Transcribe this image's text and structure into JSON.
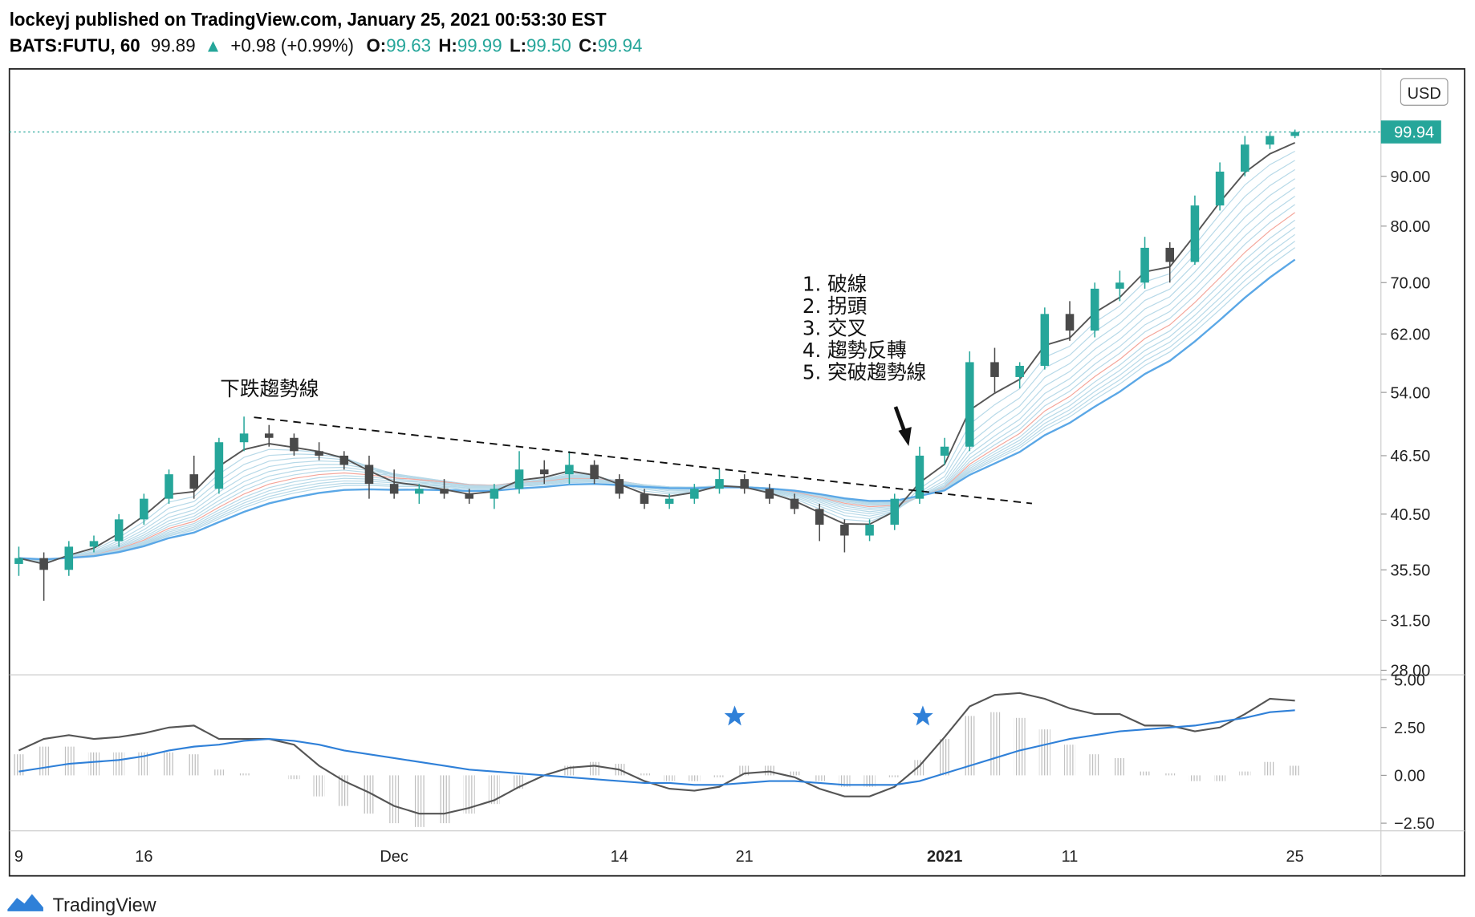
{
  "header": {
    "published": "lockeyj published on TradingView.com, January 25, 2021 00:53:30 EST",
    "symbol": "BATS:FUTU, 60",
    "last": "99.89",
    "arrow": "▲",
    "change": "+0.98 (+0.99%)",
    "quote": [
      {
        "label": "O:",
        "value": "99.63"
      },
      {
        "label": "H:",
        "value": "99.99"
      },
      {
        "label": "L:",
        "value": "99.50"
      },
      {
        "label": "C:",
        "value": "99.94"
      }
    ]
  },
  "footer": {
    "brand": "TradingView"
  },
  "chart_data": [
    {
      "type": "candlestick",
      "categories": [
        "9",
        null,
        null,
        null,
        null,
        "16",
        null,
        null,
        null,
        null,
        null,
        null,
        null,
        null,
        null,
        "Dec",
        null,
        null,
        null,
        null,
        null,
        null,
        null,
        null,
        "14",
        null,
        null,
        null,
        null,
        "21",
        null,
        null,
        null,
        null,
        null,
        null,
        null,
        "2021",
        null,
        null,
        null,
        null,
        "11",
        null,
        null,
        null,
        null,
        null,
        null,
        null,
        null,
        "25"
      ],
      "open": [
        36,
        36.5,
        35.5,
        37.5,
        38,
        40,
        42,
        44.5,
        43,
        48,
        49,
        48.5,
        47,
        46.5,
        45.5,
        43.5,
        42.5,
        43,
        42.5,
        42,
        43,
        45,
        44.5,
        45.5,
        44,
        42.5,
        41.5,
        42,
        43,
        44,
        43,
        42,
        41,
        39.5,
        38.5,
        39.5,
        42,
        46.5,
        47.5,
        58,
        56,
        57.5,
        65,
        62.5,
        69,
        70,
        76,
        73.5,
        84,
        91,
        97,
        99
      ],
      "high": [
        37.5,
        37,
        38,
        38.5,
        40.5,
        42.5,
        45,
        46.5,
        48.5,
        51,
        50,
        49,
        48,
        47,
        46.5,
        45,
        43.5,
        44,
        43,
        43.5,
        47,
        46,
        47,
        46,
        44.5,
        43,
        42.5,
        43.5,
        45,
        44.5,
        43.5,
        42.5,
        41.5,
        40,
        40,
        42.5,
        47.5,
        48.5,
        59.5,
        60,
        58,
        66,
        67,
        70,
        72,
        78,
        77,
        86,
        93,
        99,
        100,
        100.5
      ],
      "low": [
        35,
        33,
        35,
        37,
        37.5,
        39.5,
        41.5,
        42,
        42.5,
        47,
        47.5,
        46.5,
        46,
        45,
        42,
        42,
        41.5,
        42,
        41.5,
        41,
        42.5,
        43.5,
        43.5,
        43.5,
        42,
        41,
        41,
        41.5,
        42.5,
        42.5,
        41.5,
        40.5,
        38,
        37,
        38,
        39,
        41.5,
        45.5,
        47,
        54,
        54.5,
        57,
        61,
        61.5,
        67,
        69,
        70,
        73,
        83,
        90,
        96,
        98.5
      ],
      "close": [
        36.5,
        35.5,
        37.5,
        38,
        40,
        42,
        44.5,
        43,
        48,
        49,
        48.5,
        47,
        46.5,
        45.5,
        43.5,
        42.5,
        43,
        42.5,
        42,
        43,
        45,
        44.5,
        45.5,
        44,
        42.5,
        41.5,
        42,
        43,
        44,
        43,
        42,
        41,
        39.5,
        38.5,
        39.5,
        42,
        46.5,
        47.5,
        58,
        56,
        57.5,
        65,
        62.5,
        69,
        70,
        76,
        73.5,
        84,
        91,
        97,
        99,
        99.94
      ],
      "up_color": "#26a69a",
      "down_color": "#4a4a4a",
      "log_scale": true,
      "ylim": [
        27.7,
        116
      ],
      "yticks": [
        {
          "value": 28,
          "label": "28.00"
        },
        {
          "value": 31.5,
          "label": "31.50"
        },
        {
          "value": 35.5,
          "label": "35.50"
        },
        {
          "value": 40.5,
          "label": "40.50"
        },
        {
          "value": 46.5,
          "label": "46.50"
        },
        {
          "value": 54,
          "label": "54.00"
        },
        {
          "value": 62,
          "label": "62.00"
        },
        {
          "value": 70,
          "label": "70.00"
        },
        {
          "value": 80,
          "label": "80.00"
        },
        {
          "value": 90,
          "label": "90.00"
        }
      ],
      "currency": "USD",
      "last_price_label": "99.94",
      "annotations": {
        "trend_label": "下跌趨勢線",
        "steps": [
          "1. 破線",
          "2. 拐頭",
          "3. 交叉",
          "4. 趨勢反轉",
          "5. 突破趨勢線"
        ]
      }
    },
    {
      "type": "line",
      "series": [
        {
          "color": "#555555",
          "values": [
            1.3,
            1.9,
            2.1,
            1.9,
            2.0,
            2.2,
            2.5,
            2.6,
            1.9,
            1.9,
            1.9,
            1.6,
            0.5,
            -0.3,
            -0.9,
            -1.6,
            -2.0,
            -2.0,
            -1.7,
            -1.3,
            -0.6,
            0.0,
            0.4,
            0.5,
            0.3,
            -0.3,
            -0.7,
            -0.8,
            -0.6,
            0.1,
            0.2,
            -0.1,
            -0.7,
            -1.1,
            -1.1,
            -0.6,
            0.5,
            2.0,
            3.6,
            4.2,
            4.3,
            4.0,
            3.5,
            3.2,
            3.2,
            2.6,
            2.6,
            2.3,
            2.5,
            3.2,
            4.0,
            3.9
          ]
        },
        {
          "color": "#2f80d8",
          "values": [
            0.2,
            0.4,
            0.6,
            0.7,
            0.8,
            1.0,
            1.3,
            1.5,
            1.6,
            1.8,
            1.9,
            1.8,
            1.6,
            1.3,
            1.1,
            0.9,
            0.7,
            0.5,
            0.3,
            0.2,
            0.1,
            0.0,
            -0.1,
            -0.2,
            -0.3,
            -0.4,
            -0.4,
            -0.5,
            -0.5,
            -0.4,
            -0.3,
            -0.3,
            -0.4,
            -0.5,
            -0.5,
            -0.5,
            -0.3,
            0.1,
            0.5,
            0.9,
            1.3,
            1.6,
            1.9,
            2.1,
            2.3,
            2.4,
            2.5,
            2.6,
            2.8,
            3.0,
            3.3,
            3.4
          ]
        }
      ],
      "ylim": [
        -2.9,
        5.25
      ],
      "yticks": [
        {
          "value": 5,
          "label": "5.00"
        },
        {
          "value": 2.5,
          "label": "2.50"
        },
        {
          "value": 0,
          "label": "0.00"
        },
        {
          "value": -2.5,
          "label": "−2.50"
        }
      ]
    }
  ]
}
